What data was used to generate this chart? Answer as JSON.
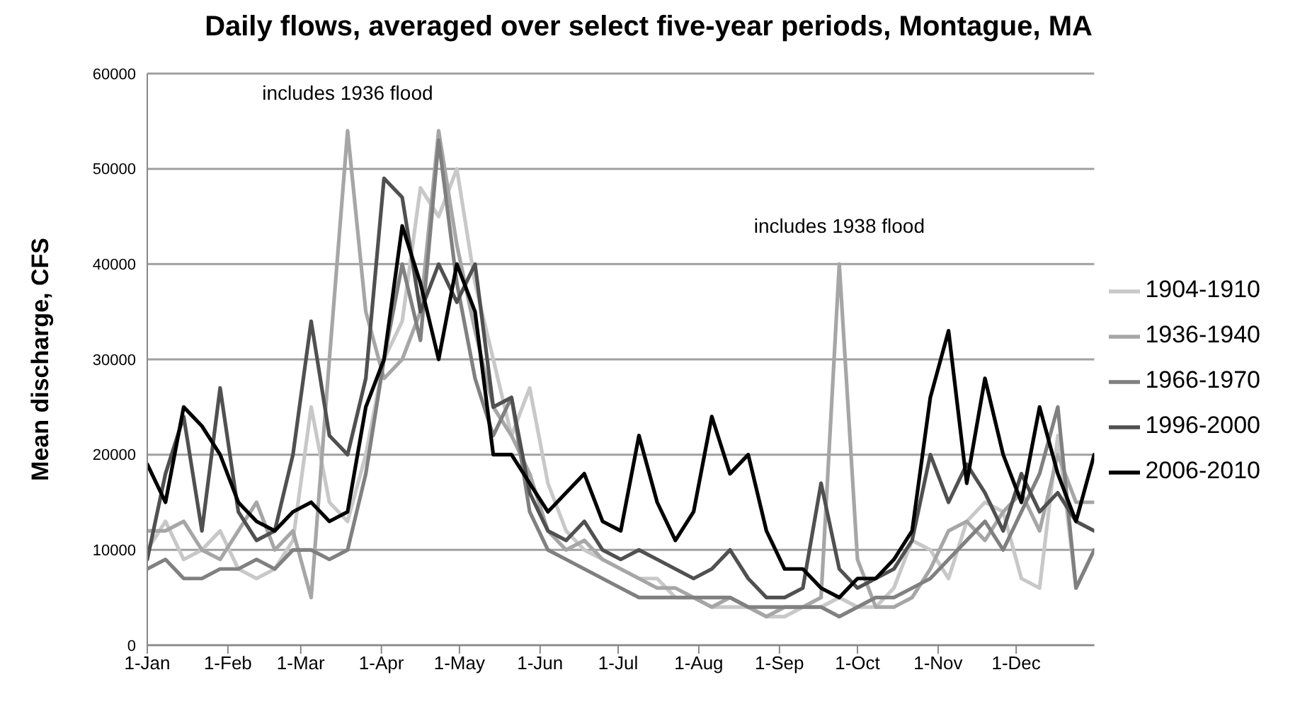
{
  "chart_data": {
    "type": "line",
    "title": "Daily flows, averaged over select five-year periods, Montague, MA",
    "ylabel": "Mean discharge, CFS",
    "x": [
      "--01-01",
      "--01-08",
      "--01-15",
      "--01-22",
      "--01-29",
      "--02-05",
      "--02-12",
      "--02-19",
      "--02-26",
      "--03-05",
      "--03-12",
      "--03-19",
      "--03-26",
      "--04-02",
      "--04-09",
      "--04-16",
      "--04-23",
      "--04-30",
      "--05-07",
      "--05-14",
      "--05-21",
      "--05-28",
      "--06-04",
      "--06-11",
      "--06-18",
      "--06-25",
      "--07-02",
      "--07-09",
      "--07-16",
      "--07-23",
      "--07-30",
      "--08-06",
      "--08-13",
      "--08-20",
      "--08-27",
      "--09-03",
      "--09-10",
      "--09-17",
      "--09-24",
      "--10-01",
      "--10-08",
      "--10-15",
      "--10-22",
      "--10-29",
      "--11-05",
      "--11-12",
      "--11-19",
      "--11-26",
      "--12-03",
      "--12-10",
      "--12-17",
      "--12-24",
      "--12-31"
    ],
    "series": [
      {
        "name": "1904-1910",
        "color": "#c8c8c8",
        "values": [
          10000,
          13000,
          9000,
          10000,
          12000,
          8000,
          7000,
          8000,
          11000,
          25000,
          15000,
          13000,
          20000,
          30000,
          34000,
          48000,
          45000,
          50000,
          38000,
          30000,
          22000,
          27000,
          17000,
          12000,
          10000,
          9000,
          8000,
          7000,
          7000,
          5000,
          5000,
          4000,
          4000,
          4000,
          3000,
          3000,
          4000,
          4000,
          5000,
          4000,
          4000,
          6000,
          11000,
          10000,
          7000,
          13000,
          15000,
          14000,
          7000,
          6000,
          22000,
          6000,
          10000
        ]
      },
      {
        "name": "1936-1940",
        "color": "#a6a6a6",
        "values": [
          12000,
          12000,
          13000,
          10000,
          9000,
          12000,
          15000,
          10000,
          12000,
          5000,
          30000,
          54000,
          35000,
          28000,
          30000,
          35000,
          54000,
          42000,
          33000,
          25000,
          22000,
          18000,
          12000,
          10000,
          11000,
          9000,
          8000,
          7000,
          6000,
          6000,
          5000,
          4000,
          5000,
          4000,
          3000,
          4000,
          4000,
          5000,
          40000,
          9000,
          4000,
          4000,
          5000,
          8000,
          12000,
          13000,
          11000,
          14000,
          16000,
          12000,
          20000,
          15000,
          15000
        ]
      },
      {
        "name": "1966-1970",
        "color": "#808080",
        "values": [
          8000,
          9000,
          7000,
          7000,
          8000,
          8000,
          9000,
          8000,
          10000,
          10000,
          9000,
          10000,
          18000,
          30000,
          40000,
          32000,
          53000,
          38000,
          28000,
          22000,
          26000,
          14000,
          10000,
          9000,
          8000,
          7000,
          6000,
          5000,
          5000,
          5000,
          5000,
          5000,
          5000,
          4000,
          4000,
          4000,
          4000,
          4000,
          3000,
          4000,
          5000,
          5000,
          6000,
          7000,
          9000,
          11000,
          13000,
          10000,
          14000,
          18000,
          25000,
          6000,
          10000
        ]
      },
      {
        "name": "1996-2000",
        "color": "#505050",
        "values": [
          9000,
          18000,
          24000,
          12000,
          27000,
          14000,
          11000,
          12000,
          20000,
          34000,
          22000,
          20000,
          28000,
          49000,
          47000,
          35000,
          40000,
          36000,
          40000,
          25000,
          26000,
          16000,
          12000,
          11000,
          13000,
          10000,
          9000,
          10000,
          9000,
          8000,
          7000,
          8000,
          10000,
          7000,
          5000,
          5000,
          6000,
          17000,
          8000,
          6000,
          7000,
          8000,
          11000,
          20000,
          15000,
          19000,
          16000,
          12000,
          18000,
          14000,
          16000,
          13000,
          12000
        ]
      },
      {
        "name": "2006-2010",
        "color": "#000000",
        "values": [
          19000,
          15000,
          25000,
          23000,
          20000,
          15000,
          13000,
          12000,
          14000,
          15000,
          13000,
          14000,
          25000,
          30000,
          44000,
          38000,
          30000,
          40000,
          35000,
          20000,
          20000,
          17000,
          14000,
          16000,
          18000,
          13000,
          12000,
          22000,
          15000,
          11000,
          14000,
          24000,
          18000,
          20000,
          12000,
          8000,
          8000,
          6000,
          5000,
          7000,
          7000,
          9000,
          12000,
          26000,
          33000,
          17000,
          28000,
          20000,
          15000,
          25000,
          18000,
          13000,
          20000
        ]
      }
    ],
    "xlim": [
      "--01-01",
      "--12-31"
    ],
    "xticks": [
      {
        "value": "--01-01",
        "label": "1-Jan"
      },
      {
        "value": "--02-01",
        "label": "1-Feb"
      },
      {
        "value": "--03-01",
        "label": "1-Mar"
      },
      {
        "value": "--04-01",
        "label": "1-Apr"
      },
      {
        "value": "--05-01",
        "label": "1-May"
      },
      {
        "value": "--06-01",
        "label": "1-Jun"
      },
      {
        "value": "--07-01",
        "label": "1-Jul"
      },
      {
        "value": "--08-01",
        "label": "1-Aug"
      },
      {
        "value": "--09-01",
        "label": "1-Sep"
      },
      {
        "value": "--10-01",
        "label": "1-Oct"
      },
      {
        "value": "--11-01",
        "label": "1-Nov"
      },
      {
        "value": "--12-01",
        "label": "1-Dec"
      }
    ],
    "ylim": [
      0,
      60000
    ],
    "yticks": [
      0,
      10000,
      20000,
      30000,
      40000,
      50000,
      60000
    ],
    "annotations": [
      {
        "text": "includes 1936 flood",
        "x": "--03-19",
        "y": 54000
      },
      {
        "text": "includes 1938 flood",
        "x": "--09-24",
        "y": 40000
      }
    ],
    "grid": "y",
    "legend": "right",
    "marker": "none",
    "line_style": "solid"
  }
}
